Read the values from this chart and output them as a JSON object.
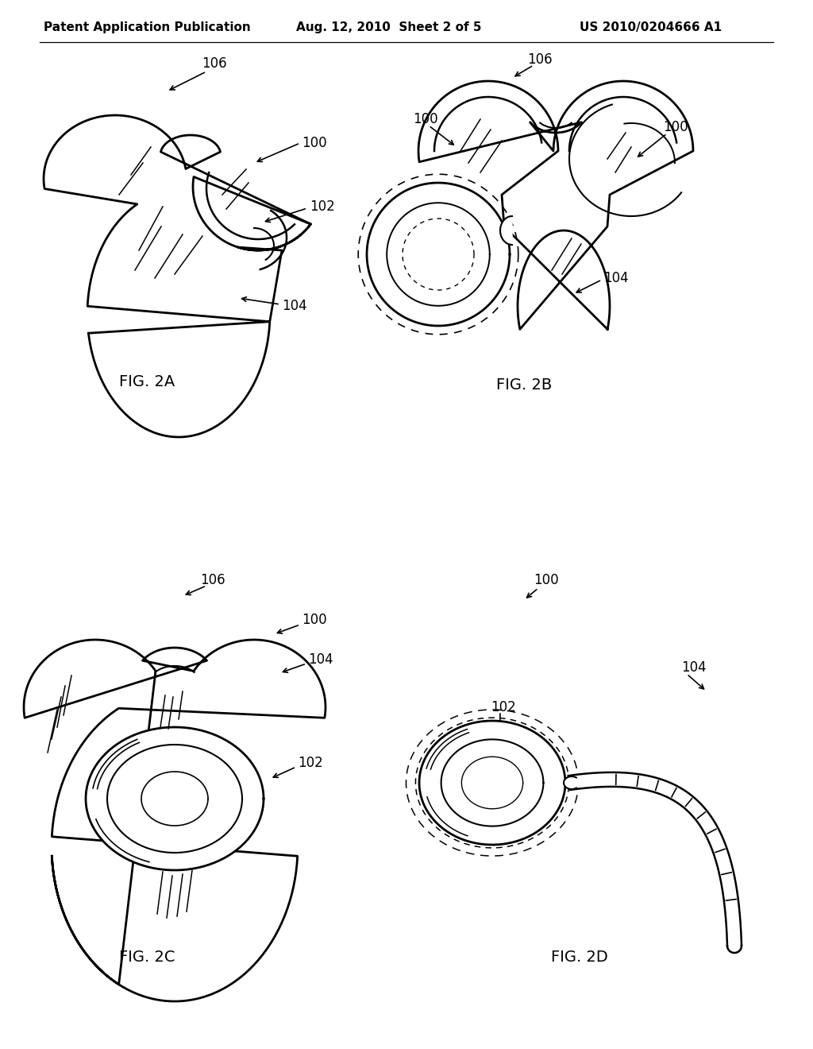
{
  "background_color": "#ffffff",
  "header_left": "Patent Application Publication",
  "header_center": "Aug. 12, 2010  Sheet 2 of 5",
  "header_right": "US 2010/0204666 A1",
  "fig2a_label": "FIG. 2A",
  "fig2b_label": "FIG. 2B",
  "fig2c_label": "FIG. 2C",
  "fig2d_label": "FIG. 2D",
  "line_color": "#000000"
}
